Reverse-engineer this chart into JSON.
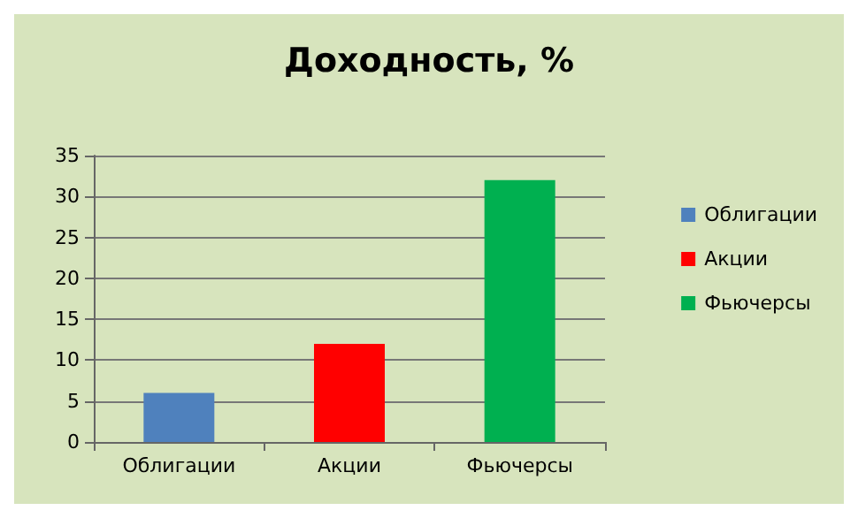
{
  "chart_data": {
    "type": "bar",
    "title": "Доходность, %",
    "categories": [
      "Облигации",
      "Акции",
      "Фьючерсы"
    ],
    "series": [
      {
        "name": "Облигации",
        "color": "#4f81bd",
        "values": [
          6,
          null,
          null
        ]
      },
      {
        "name": "Акции",
        "color": "#ff0000",
        "values": [
          null,
          12,
          null
        ]
      },
      {
        "name": "Фьючерсы",
        "color": "#00b050",
        "values": [
          null,
          null,
          32
        ]
      }
    ],
    "ylim": [
      0,
      35
    ],
    "yticks": [
      0,
      5,
      10,
      15,
      20,
      25,
      30,
      35
    ],
    "grid": "y",
    "legend": "right"
  }
}
